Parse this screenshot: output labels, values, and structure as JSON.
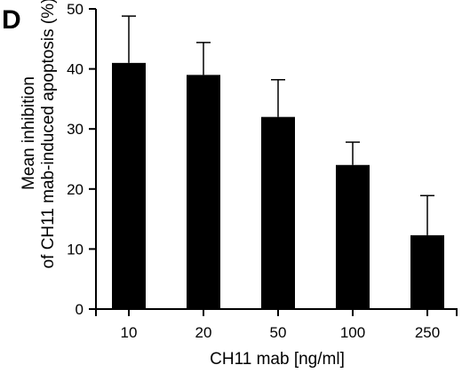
{
  "chart_data": {
    "type": "bar",
    "panel_label": "D",
    "categories": [
      "10",
      "20",
      "50",
      "100",
      "250"
    ],
    "values": [
      41,
      39,
      32,
      24,
      12.3
    ],
    "errors": [
      7.8,
      5.4,
      6.2,
      3.8,
      6.6
    ],
    "xlabel": "CH11 mab [ng/ml]",
    "ylabel_lines": [
      "Mean inhibition",
      "of CH11 mab-induced apoptosis (%)"
    ],
    "ylim": [
      0,
      50
    ],
    "yticks": [
      0,
      10,
      20,
      30,
      40,
      50
    ],
    "grid": false,
    "bar_color": "#000000"
  }
}
